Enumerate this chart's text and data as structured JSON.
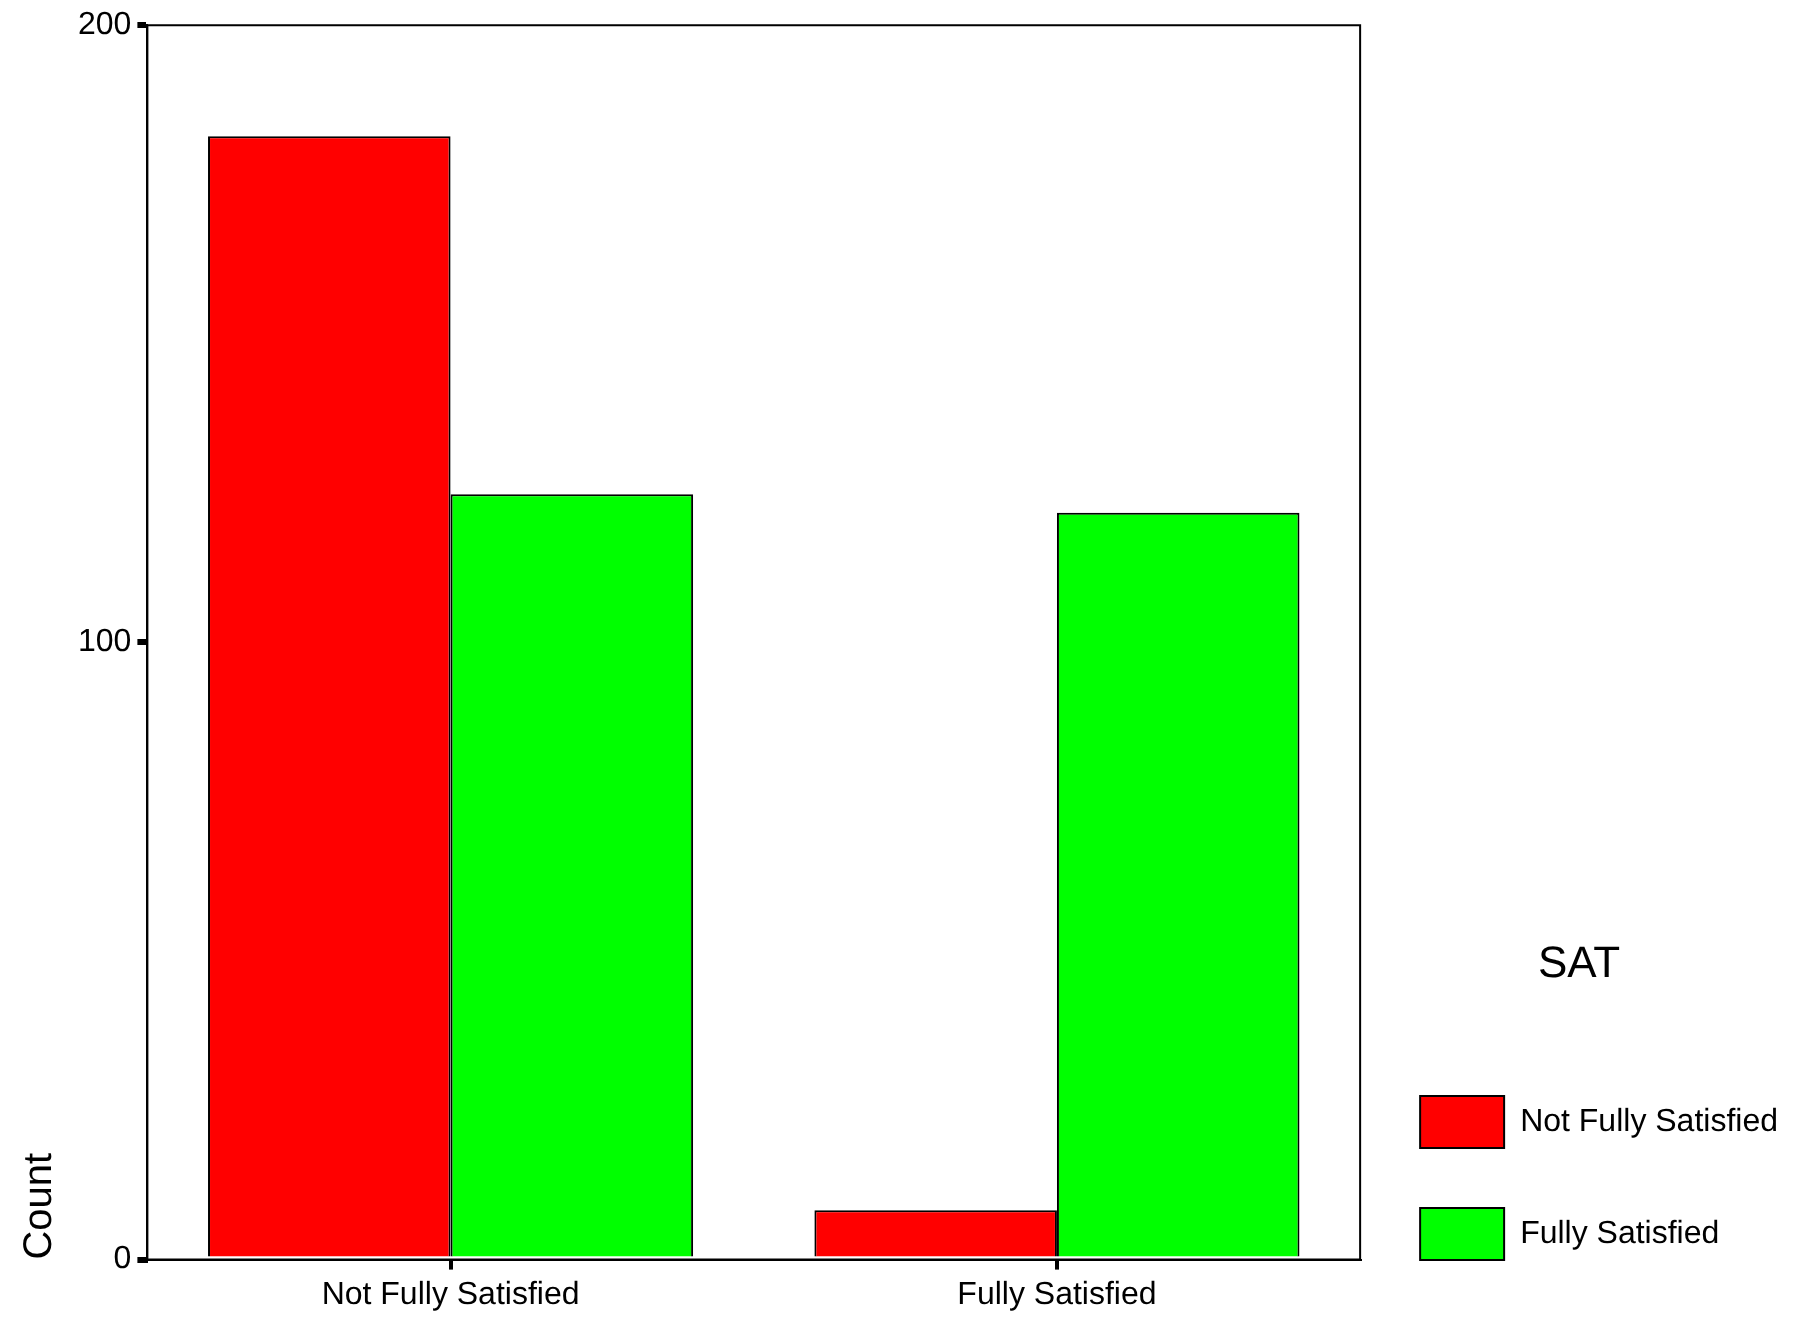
{
  "chart_data": {
    "type": "bar",
    "ylabel": "Count",
    "legend_title": "SAT",
    "categories": [
      "Not Fully Satisfied",
      "Fully Satisfied"
    ],
    "series": [
      {
        "name": "Not Fully Satisfied",
        "color": "#ff0000",
        "values": [
          182,
          8
        ]
      },
      {
        "name": "Fully Satisfied",
        "color": "#00ff00",
        "values": [
          124,
          121
        ]
      }
    ],
    "ylim": [
      0,
      200
    ],
    "yticks": [
      0,
      100,
      200
    ],
    "grid": false,
    "legend": "right"
  }
}
